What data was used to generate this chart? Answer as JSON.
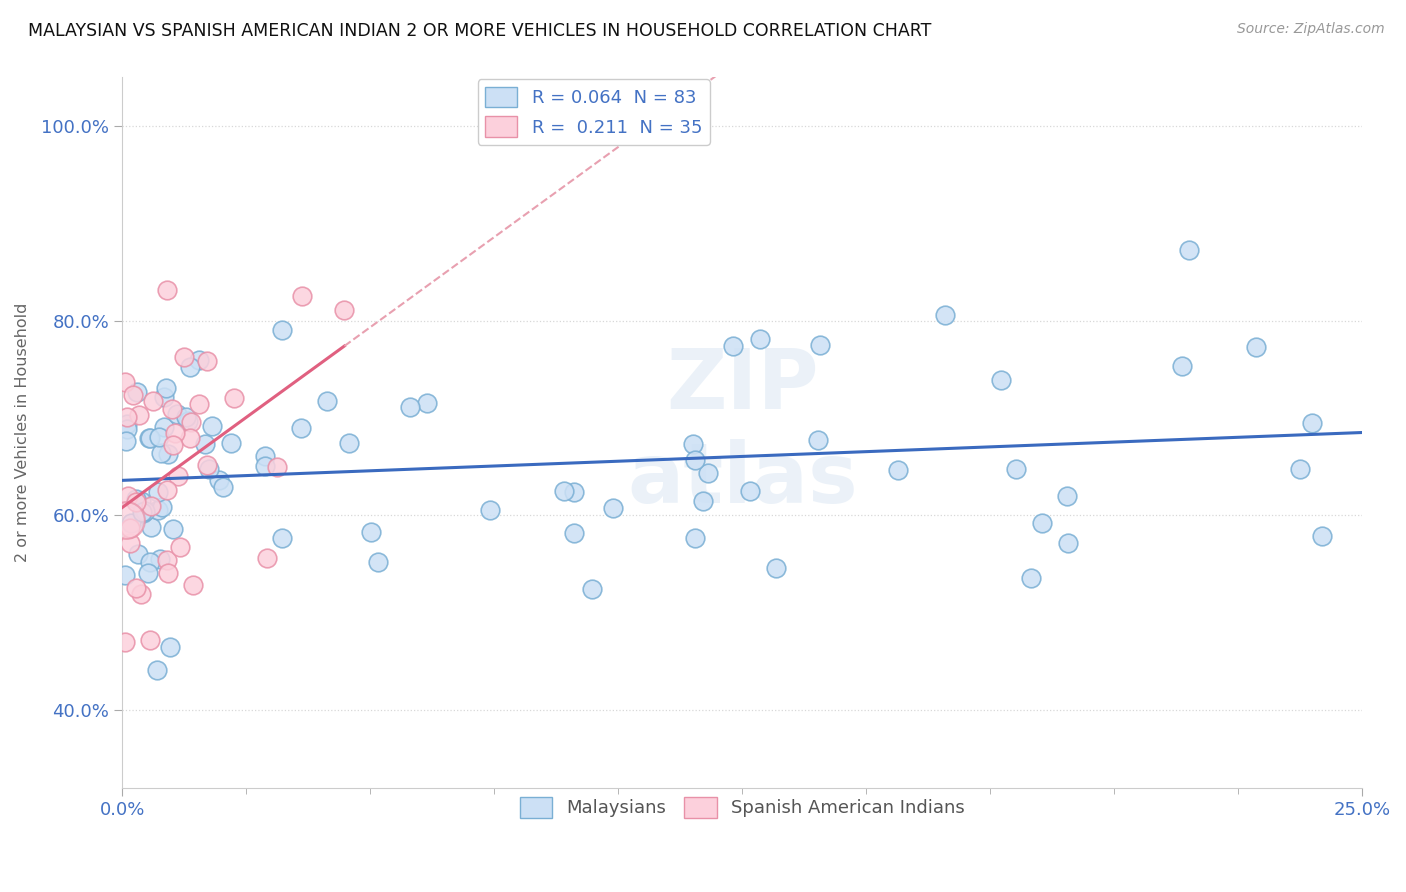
{
  "title": "MALAYSIAN VS SPANISH AMERICAN INDIAN 2 OR MORE VEHICLES IN HOUSEHOLD CORRELATION CHART",
  "source": "Source: ZipAtlas.com",
  "ylabel": "2 or more Vehicles in Household",
  "xlim": [
    0.0,
    0.25
  ],
  "ylim": [
    0.32,
    1.05
  ],
  "r_malaysian": 0.064,
  "n_malaysian": 83,
  "r_spanish": 0.211,
  "n_spanish": 35,
  "color_malaysian_face": "#cce0f5",
  "color_malaysian_edge": "#7aafd4",
  "color_spanish_face": "#fcd0dc",
  "color_spanish_edge": "#e891a8",
  "line_color_malaysian": "#3a6abf",
  "line_color_spanish": "#e06080",
  "line_color_dashed": "#e8a0b0",
  "yticks": [
    0.4,
    0.6,
    0.8,
    1.0
  ],
  "ytick_labels": [
    "40.0%",
    "60.0%",
    "80.0%",
    "100.0%"
  ],
  "xtick_left": "0.0%",
  "xtick_right": "25.0%"
}
